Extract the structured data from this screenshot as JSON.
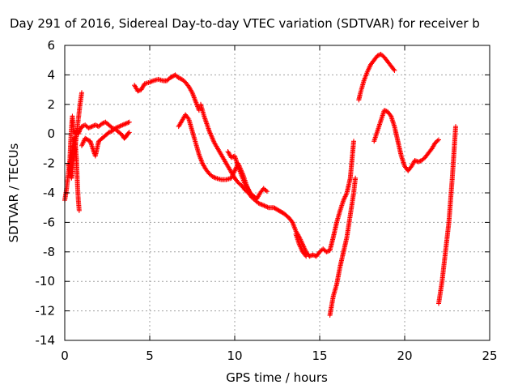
{
  "chart_data": {
    "type": "scatter",
    "title": "Day 291 of 2016, Sidereal Day-to-day VTEC variation (SDTVAR) for receiver b",
    "xlabel": "GPS time / hours",
    "ylabel": "SDTVAR / TECUs",
    "xlim": [
      0,
      25
    ],
    "ylim": [
      -14,
      6
    ],
    "xticks": [
      0,
      5,
      10,
      15,
      20,
      25
    ],
    "yticks": [
      6,
      4,
      2,
      0,
      -2,
      -4,
      -6,
      -8,
      -10,
      -12,
      -14
    ],
    "grid": true,
    "marker": "+",
    "series": [
      {
        "color": "#ff0000",
        "segments": [
          [
            [
              0.0,
              -4.5
            ],
            [
              0.1,
              -3.8
            ],
            [
              0.2,
              -2.8
            ],
            [
              0.3,
              -1.8
            ],
            [
              0.35,
              -0.5
            ],
            [
              0.4,
              0.5
            ],
            [
              0.45,
              1.2
            ],
            [
              0.5,
              0.3
            ],
            [
              0.6,
              0.0
            ],
            [
              0.7,
              0.2
            ],
            [
              0.8,
              0.0
            ],
            [
              0.9,
              0.3
            ],
            [
              1.0,
              0.5
            ],
            [
              1.2,
              0.6
            ],
            [
              1.4,
              0.4
            ],
            [
              1.6,
              0.5
            ],
            [
              1.8,
              0.6
            ],
            [
              2.0,
              0.5
            ],
            [
              2.2,
              0.7
            ],
            [
              2.4,
              0.8
            ],
            [
              2.6,
              0.6
            ],
            [
              2.8,
              0.4
            ],
            [
              3.0,
              0.3
            ],
            [
              3.2,
              0.1
            ],
            [
              3.4,
              -0.1
            ],
            [
              3.5,
              -0.3
            ],
            [
              3.6,
              -0.2
            ],
            [
              3.7,
              0.0
            ],
            [
              3.8,
              0.1
            ]
          ],
          [
            [
              0.3,
              -2.5
            ],
            [
              0.4,
              -1.5
            ],
            [
              0.5,
              -0.5
            ],
            [
              0.6,
              -0.2
            ],
            [
              0.7,
              -2.0
            ],
            [
              0.75,
              -3.5
            ],
            [
              0.8,
              -4.5
            ],
            [
              0.85,
              -5.2
            ]
          ],
          [
            [
              0.2,
              -2.0
            ],
            [
              0.4,
              -3.0
            ],
            [
              0.5,
              -2.0
            ],
            [
              0.6,
              -1.0
            ],
            [
              0.7,
              0.0
            ],
            [
              0.8,
              1.0
            ],
            [
              0.9,
              2.0
            ],
            [
              1.0,
              2.8
            ]
          ],
          [
            [
              1.0,
              -0.8
            ],
            [
              1.2,
              -0.3
            ],
            [
              1.5,
              -0.5
            ],
            [
              1.8,
              -1.5
            ],
            [
              2.0,
              -0.5
            ],
            [
              2.3,
              -0.2
            ],
            [
              2.6,
              0.1
            ],
            [
              2.8,
              0.2
            ],
            [
              3.0,
              0.4
            ],
            [
              3.2,
              0.5
            ],
            [
              3.4,
              0.6
            ],
            [
              3.6,
              0.7
            ],
            [
              3.8,
              0.8
            ]
          ],
          [
            [
              4.1,
              3.3
            ],
            [
              4.3,
              2.9
            ],
            [
              4.5,
              3.0
            ],
            [
              4.7,
              3.4
            ],
            [
              5.0,
              3.5
            ],
            [
              5.2,
              3.6
            ],
            [
              5.5,
              3.7
            ],
            [
              5.8,
              3.6
            ],
            [
              6.0,
              3.6
            ],
            [
              6.2,
              3.8
            ],
            [
              6.5,
              4.0
            ],
            [
              6.7,
              3.8
            ],
            [
              6.9,
              3.7
            ],
            [
              7.1,
              3.5
            ],
            [
              7.3,
              3.2
            ],
            [
              7.5,
              2.8
            ],
            [
              7.7,
              2.2
            ],
            [
              7.9,
              1.6
            ]
          ],
          [
            [
              8.0,
              2.0
            ],
            [
              8.2,
              1.2
            ],
            [
              8.5,
              0.2
            ],
            [
              8.8,
              -0.6
            ],
            [
              9.0,
              -1.0
            ],
            [
              9.2,
              -1.4
            ],
            [
              9.4,
              -1.8
            ],
            [
              9.6,
              -2.2
            ],
            [
              9.8,
              -2.6
            ],
            [
              10.0,
              -3.0
            ],
            [
              10.2,
              -3.3
            ],
            [
              10.4,
              -3.5
            ],
            [
              10.6,
              -3.8
            ],
            [
              10.8,
              -4.0
            ],
            [
              11.0,
              -4.3
            ],
            [
              11.2,
              -4.5
            ],
            [
              11.4,
              -4.7
            ],
            [
              11.6,
              -4.8
            ],
            [
              11.8,
              -4.9
            ],
            [
              12.0,
              -5.0
            ],
            [
              12.3,
              -5.0
            ],
            [
              12.6,
              -5.2
            ],
            [
              12.9,
              -5.4
            ],
            [
              13.2,
              -5.7
            ],
            [
              13.4,
              -6.0
            ],
            [
              13.6,
              -6.6
            ],
            [
              13.8,
              -7.0
            ],
            [
              14.0,
              -7.5
            ],
            [
              14.2,
              -8.0
            ],
            [
              14.4,
              -8.3
            ],
            [
              14.6,
              -8.2
            ],
            [
              14.8,
              -8.3
            ],
            [
              15.0,
              -8.0
            ],
            [
              15.2,
              -7.8
            ],
            [
              15.4,
              -8.0
            ],
            [
              15.6,
              -7.9
            ],
            [
              15.8,
              -7.0
            ],
            [
              16.0,
              -6.0
            ],
            [
              16.2,
              -5.2
            ],
            [
              16.4,
              -4.5
            ],
            [
              16.6,
              -4.0
            ],
            [
              16.8,
              -3.0
            ],
            [
              17.0,
              -0.5
            ]
          ],
          [
            [
              6.7,
              0.5
            ],
            [
              6.9,
              0.9
            ],
            [
              7.1,
              1.3
            ],
            [
              7.3,
              1.0
            ],
            [
              7.5,
              0.2
            ],
            [
              7.7,
              -0.6
            ],
            [
              7.9,
              -1.4
            ],
            [
              8.1,
              -2.0
            ],
            [
              8.3,
              -2.4
            ],
            [
              8.5,
              -2.7
            ],
            [
              8.7,
              -2.9
            ],
            [
              8.9,
              -3.0
            ],
            [
              9.2,
              -3.1
            ],
            [
              9.5,
              -3.1
            ],
            [
              9.8,
              -3.0
            ],
            [
              10.0,
              -2.5
            ],
            [
              10.2,
              -2.0
            ],
            [
              10.5,
              -2.8
            ],
            [
              10.7,
              -3.5
            ],
            [
              10.9,
              -4.0
            ],
            [
              11.1,
              -4.2
            ],
            [
              11.3,
              -4.4
            ],
            [
              11.5,
              -4.0
            ],
            [
              11.7,
              -3.7
            ],
            [
              11.9,
              -3.9
            ]
          ],
          [
            [
              9.6,
              -1.2
            ],
            [
              9.8,
              -1.6
            ],
            [
              10.0,
              -1.5
            ],
            [
              10.2,
              -2.2
            ],
            [
              10.4,
              -2.8
            ],
            [
              10.6,
              -3.4
            ],
            [
              10.8,
              -3.8
            ],
            [
              11.0,
              -4.2
            ]
          ],
          [
            [
              13.6,
              -6.8
            ],
            [
              13.8,
              -7.5
            ],
            [
              14.0,
              -8.0
            ],
            [
              14.2,
              -8.3
            ]
          ],
          [
            [
              15.6,
              -12.3
            ],
            [
              15.8,
              -11.0
            ],
            [
              16.0,
              -10.2
            ],
            [
              16.2,
              -9.0
            ],
            [
              16.4,
              -8.0
            ],
            [
              16.6,
              -7.0
            ],
            [
              16.8,
              -5.5
            ],
            [
              17.0,
              -4.0
            ],
            [
              17.1,
              -3.0
            ]
          ],
          [
            [
              17.3,
              2.3
            ],
            [
              17.4,
              2.8
            ],
            [
              17.6,
              3.6
            ],
            [
              17.8,
              4.2
            ],
            [
              18.0,
              4.7
            ],
            [
              18.2,
              5.0
            ],
            [
              18.4,
              5.3
            ],
            [
              18.6,
              5.4
            ],
            [
              18.8,
              5.2
            ],
            [
              19.0,
              4.9
            ],
            [
              19.2,
              4.6
            ],
            [
              19.4,
              4.3
            ]
          ],
          [
            [
              18.2,
              -0.5
            ],
            [
              18.4,
              0.2
            ],
            [
              18.6,
              0.9
            ],
            [
              18.8,
              1.6
            ],
            [
              19.0,
              1.5
            ],
            [
              19.2,
              1.2
            ],
            [
              19.4,
              0.5
            ],
            [
              19.6,
              -0.5
            ],
            [
              19.8,
              -1.5
            ],
            [
              20.0,
              -2.2
            ],
            [
              20.2,
              -2.5
            ],
            [
              20.4,
              -2.2
            ],
            [
              20.6,
              -1.8
            ],
            [
              20.8,
              -1.9
            ],
            [
              21.0,
              -1.8
            ],
            [
              21.2,
              -1.6
            ],
            [
              21.4,
              -1.3
            ],
            [
              21.6,
              -1.0
            ],
            [
              21.8,
              -0.6
            ],
            [
              22.0,
              -0.4
            ]
          ],
          [
            [
              22.0,
              -11.5
            ],
            [
              22.2,
              -10.0
            ],
            [
              22.4,
              -8.0
            ],
            [
              22.6,
              -6.0
            ],
            [
              22.8,
              -3.0
            ],
            [
              23.0,
              0.5
            ]
          ]
        ]
      }
    ]
  }
}
